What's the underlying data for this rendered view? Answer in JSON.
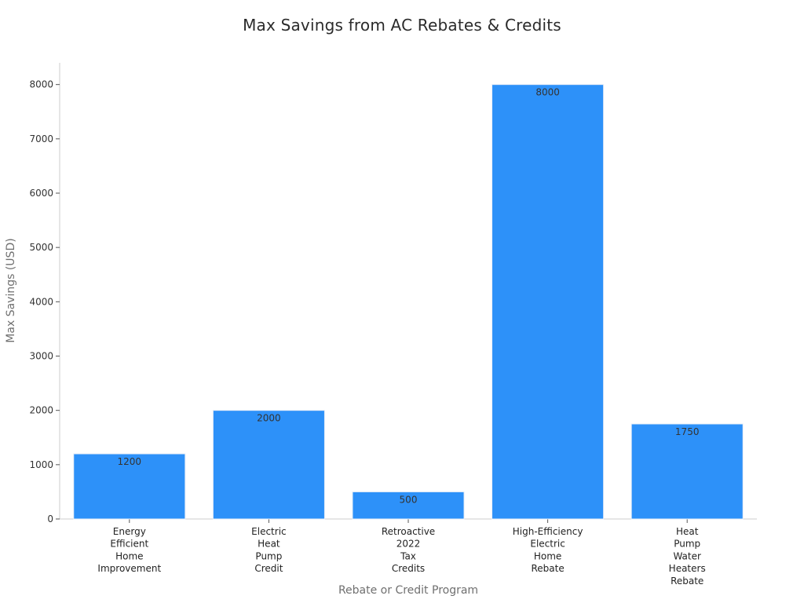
{
  "chart_data": {
    "type": "bar",
    "title": "Max Savings from AC Rebates & Credits",
    "xlabel": "Rebate or Credit Program",
    "ylabel": "Max Savings (USD)",
    "categories": [
      "Energy Efficient Home Improvement",
      "Electric Heat Pump Credit",
      "Retroactive 2022 Tax Credits",
      "High-Efficiency Electric Home Rebate",
      "Heat Pump Water Heaters Rebate"
    ],
    "values": [
      1200,
      2000,
      500,
      8000,
      1750
    ],
    "data_labels": [
      "1200",
      "2000",
      "500",
      "8000",
      "1750"
    ],
    "ylim": [
      0,
      8400
    ],
    "yticks": [
      0,
      1000,
      2000,
      3000,
      4000,
      5000,
      6000,
      7000,
      8000
    ],
    "grid": false,
    "legend": "none",
    "colors": {
      "bar": "#2d91f9",
      "bar_edge": "#e8eef7",
      "axis": "#cccccc",
      "text": "#333333",
      "axis_title": "#6f6f6f"
    }
  }
}
